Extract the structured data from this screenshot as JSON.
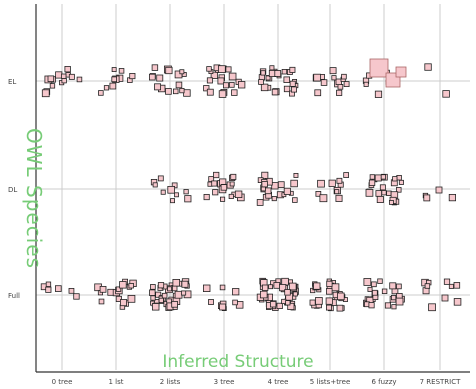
{
  "chart_data": {
    "type": "scatter",
    "title": "",
    "xlabel": "Inferred Structure",
    "ylabel": "OWL Species",
    "categories_x": [
      "0 tree",
      "1 lst",
      "2 lists",
      "3 tree",
      "4 tree",
      "5 lists+tree",
      "6 fuzzy",
      "7 RESTRICT"
    ],
    "categories_y": [
      "EL",
      "DL",
      "Full"
    ],
    "grid": true,
    "series": [
      {
        "y": "EL",
        "counts": [
          14,
          10,
          16,
          22,
          25,
          14,
          10,
          2
        ],
        "sizes": [
          1,
          1,
          1,
          1,
          1,
          1,
          2,
          1
        ]
      },
      {
        "y": "DL",
        "counts": [
          0,
          0,
          10,
          20,
          22,
          10,
          24,
          4
        ],
        "sizes": [
          1,
          1,
          1,
          1,
          1,
          1,
          1,
          1
        ]
      },
      {
        "y": "Full",
        "counts": [
          6,
          18,
          40,
          10,
          42,
          30,
          24,
          10
        ],
        "sizes": [
          1,
          1,
          1,
          1,
          1,
          1,
          1,
          1
        ]
      }
    ],
    "colors": {
      "marker_fill": "#f6c7cc",
      "marker_stroke": "#222222",
      "label": "#77cc77",
      "grid": "#cccccc",
      "axis": "#333333"
    }
  }
}
